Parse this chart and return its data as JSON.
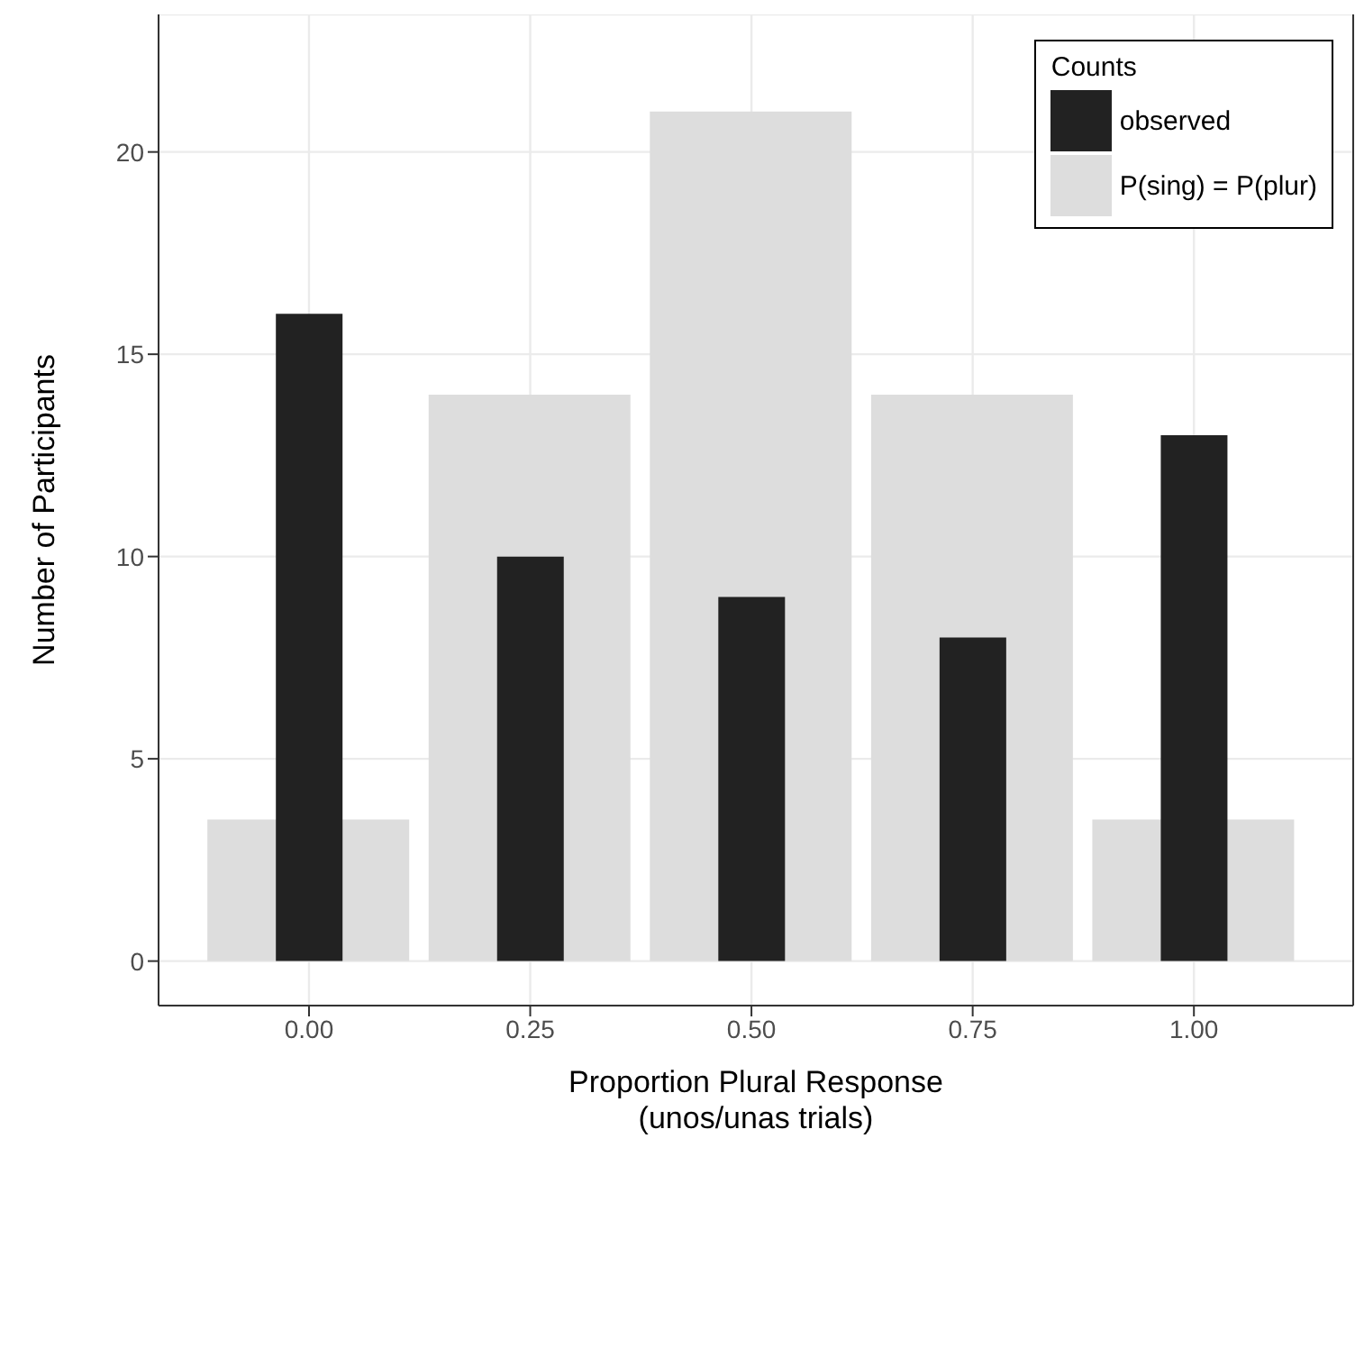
{
  "chart_data": {
    "type": "bar",
    "xlabel": "Proportion Plural Response\n(unos/unas trials)",
    "ylabel": "Number of Participants",
    "legend_title": "Counts",
    "x": [
      0,
      0.25,
      0.5,
      0.75,
      1
    ],
    "series": [
      {
        "name": "observed",
        "color": "#222222",
        "values": [
          16,
          10,
          9,
          8,
          13
        ]
      },
      {
        "name": "P(sing) = P(plur)",
        "color": "#dddddd",
        "values": [
          3.5,
          14,
          21,
          14,
          3.5
        ]
      }
    ],
    "xlim": [
      -0.17,
      1.18
    ],
    "xticks": [
      {
        "value": 0,
        "label": "0.00"
      },
      {
        "value": 0.25,
        "label": "0.25"
      },
      {
        "value": 0.5,
        "label": "0.50"
      },
      {
        "value": 0.75,
        "label": "0.75"
      },
      {
        "value": 1,
        "label": "1.00"
      }
    ],
    "ylim": [
      -1.1,
      23.4
    ],
    "yticks": [
      0,
      5,
      10,
      15,
      20
    ],
    "grid": true,
    "legend": "top right"
  }
}
